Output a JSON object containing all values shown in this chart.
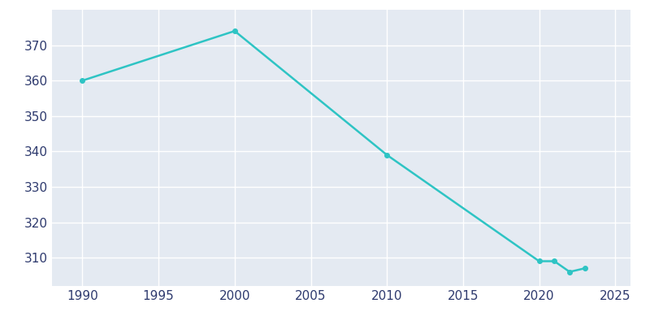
{
  "years": [
    1990,
    2000,
    2010,
    2020,
    2021,
    2022,
    2023
  ],
  "population": [
    360,
    374,
    339,
    309,
    309,
    306,
    307
  ],
  "line_color": "#2EC4C4",
  "background_color": "#E4EAF2",
  "fig_background_color": "#FFFFFF",
  "grid_color": "#FFFFFF",
  "text_color": "#2E3A6E",
  "xlim": [
    1988,
    2026
  ],
  "ylim": [
    302,
    380
  ],
  "xticks": [
    1990,
    1995,
    2000,
    2005,
    2010,
    2015,
    2020,
    2025
  ],
  "yticks": [
    310,
    320,
    330,
    340,
    350,
    360,
    370
  ],
  "linewidth": 1.8,
  "markersize": 4
}
